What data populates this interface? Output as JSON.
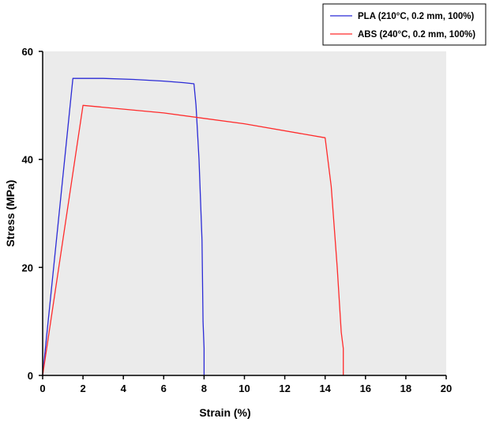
{
  "chart_data": {
    "type": "line",
    "xlabel": "Strain (%)",
    "ylabel": "Stress (MPa)",
    "xlim": [
      0,
      20
    ],
    "ylim": [
      0,
      60
    ],
    "xticks": [
      0,
      2,
      4,
      6,
      8,
      10,
      12,
      14,
      16,
      18,
      20
    ],
    "yticks": [
      0,
      20,
      40,
      60
    ],
    "grid": false,
    "legend_position": "top-right",
    "plot_background": "#ebebeb",
    "series": [
      {
        "name": "PLA (210°C, 0.2 mm, 100%)",
        "color": "#2b2bd6",
        "x": [
          0,
          1.5,
          3,
          4.5,
          6,
          7,
          7.5,
          7.6,
          7.75,
          7.9,
          7.95,
          8.0,
          8.0
        ],
        "y": [
          0,
          55,
          55,
          54.8,
          54.5,
          54.2,
          54,
          50,
          40,
          25,
          10,
          5,
          0
        ]
      },
      {
        "name": "ABS (240°C, 0.2 mm, 100%)",
        "color": "#ff2b2b",
        "x": [
          0,
          2,
          6,
          10,
          14,
          14.3,
          14.6,
          14.8,
          14.9,
          14.9
        ],
        "y": [
          0,
          50,
          48.6,
          46.6,
          44,
          35,
          20,
          8,
          5,
          0
        ]
      }
    ]
  }
}
